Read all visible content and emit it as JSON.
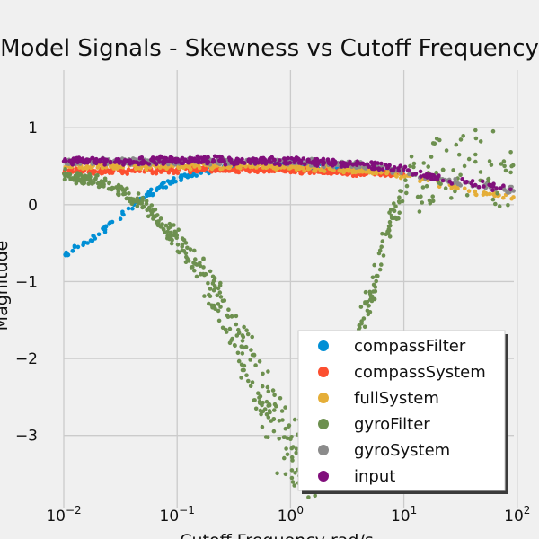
{
  "chart_data": {
    "type": "scatter",
    "title": "Model Signals - Skewness vs Cutoff Frequency",
    "xlabel": "Cutoff Frequency rad/s",
    "ylabel": "Magnitude",
    "xscale": "log",
    "xlim": [
      0.01,
      150
    ],
    "ylim": [
      -3.95,
      1.75
    ],
    "x_tick_labels": [
      {
        "value": 0.01,
        "base": "10",
        "exp": "−2"
      },
      {
        "value": 0.1,
        "base": "10",
        "exp": "−1"
      },
      {
        "value": 1,
        "base": "10",
        "exp": "0"
      },
      {
        "value": 10,
        "base": "10",
        "exp": "1"
      },
      {
        "value": 100,
        "base": "10",
        "exp": "2"
      }
    ],
    "y_ticks": [
      1,
      0,
      -1,
      -2,
      -3
    ],
    "y_tick_labels": [
      "1",
      "0",
      "−1",
      "−2",
      "−3"
    ],
    "grid": true,
    "legend_position": "lower-right",
    "series": [
      {
        "name": "compassFilter",
        "color": "#008fd5",
        "x": [
          0.01,
          0.015,
          0.02,
          0.03,
          0.04,
          0.05,
          0.07,
          0.1,
          0.15,
          0.2,
          0.3,
          0.5,
          1,
          2,
          5,
          10
        ],
        "y": [
          -0.65,
          -0.5,
          -0.38,
          -0.18,
          -0.02,
          0.1,
          0.22,
          0.33,
          0.42,
          0.46,
          0.5,
          0.52,
          0.53,
          0.5,
          0.46,
          0.42
        ]
      },
      {
        "name": "compassSystem",
        "color": "#fc4f30",
        "x": [
          0.01,
          0.02,
          0.05,
          0.1,
          0.2,
          0.5,
          1,
          2,
          5,
          10
        ],
        "y": [
          0.45,
          0.44,
          0.44,
          0.45,
          0.46,
          0.46,
          0.45,
          0.43,
          0.41,
          0.4
        ]
      },
      {
        "name": "fullSystem",
        "color": "#e5ae38",
        "x": [
          0.01,
          0.05,
          0.1,
          0.5,
          1,
          2,
          5,
          10,
          20,
          50,
          100
        ],
        "y": [
          0.5,
          0.5,
          0.5,
          0.5,
          0.49,
          0.47,
          0.44,
          0.38,
          0.28,
          0.15,
          0.08
        ]
      },
      {
        "name": "gyroFilter",
        "color": "#6d904f",
        "x": [
          0.01,
          0.02,
          0.03,
          0.05,
          0.07,
          0.1,
          0.15,
          0.2,
          0.3,
          0.5,
          0.7,
          1,
          1.5,
          2,
          3,
          5,
          7,
          10,
          20,
          50,
          100
        ],
        "y": [
          0.38,
          0.3,
          0.2,
          0.0,
          -0.2,
          -0.45,
          -0.8,
          -1.1,
          -1.6,
          -2.3,
          -2.8,
          -3.25,
          -3.4,
          -3.1,
          -2.3,
          -1.2,
          -0.4,
          0.15,
          0.5,
          0.6,
          0.25
        ]
      },
      {
        "name": "gyroSystem",
        "color": "#8b8b8b",
        "x": [
          0.01,
          0.05,
          0.1,
          0.5,
          1,
          2,
          5,
          10,
          20,
          50,
          100
        ],
        "y": [
          0.56,
          0.56,
          0.57,
          0.56,
          0.56,
          0.54,
          0.5,
          0.44,
          0.33,
          0.24,
          0.18
        ]
      },
      {
        "name": "input",
        "color": "#810f7c",
        "x": [
          0.01,
          0.05,
          0.1,
          0.5,
          1,
          2,
          5,
          10,
          20,
          50,
          100
        ],
        "y": [
          0.57,
          0.57,
          0.58,
          0.57,
          0.57,
          0.55,
          0.51,
          0.45,
          0.34,
          0.25,
          0.19
        ]
      }
    ]
  }
}
